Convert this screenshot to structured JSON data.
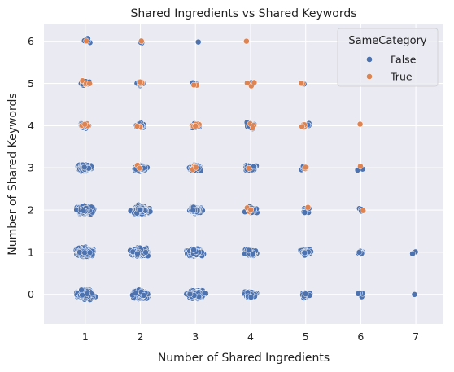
{
  "chart_data": {
    "type": "scatter",
    "title": "Shared Ingredients vs Shared Keywords",
    "xlabel": "Number of Shared Ingredients",
    "ylabel": "Number of Shared Keywords",
    "xlim": [
      0.25,
      7.5
    ],
    "ylim": [
      -0.7,
      6.4
    ],
    "xticks": [
      1,
      2,
      3,
      4,
      5,
      6,
      7
    ],
    "yticks": [
      0,
      1,
      2,
      3,
      4,
      5,
      6
    ],
    "grid": true,
    "jitter": true,
    "background": "#EAEAF2",
    "legend": {
      "title": "SameCategory",
      "position": "upper right",
      "entries": [
        {
          "label": "False",
          "color": "#4C72B0"
        },
        {
          "label": "True",
          "color": "#DD8452"
        }
      ]
    },
    "series": [
      {
        "name": "False",
        "color": "#4C72B0",
        "groups": [
          {
            "x": 1,
            "y": 0,
            "count": 900
          },
          {
            "x": 1,
            "y": 1,
            "count": 700
          },
          {
            "x": 1,
            "y": 2,
            "count": 450
          },
          {
            "x": 1,
            "y": 3,
            "count": 160
          },
          {
            "x": 1,
            "y": 4,
            "count": 30
          },
          {
            "x": 1,
            "y": 5,
            "count": 14
          },
          {
            "x": 1,
            "y": 6,
            "count": 4
          },
          {
            "x": 2,
            "y": 0,
            "count": 500
          },
          {
            "x": 2,
            "y": 1,
            "count": 400
          },
          {
            "x": 2,
            "y": 2,
            "count": 280
          },
          {
            "x": 2,
            "y": 3,
            "count": 120
          },
          {
            "x": 2,
            "y": 4,
            "count": 32
          },
          {
            "x": 2,
            "y": 5,
            "count": 8
          },
          {
            "x": 2,
            "y": 6,
            "count": 2
          },
          {
            "x": 3,
            "y": 0,
            "count": 300
          },
          {
            "x": 3,
            "y": 1,
            "count": 170
          },
          {
            "x": 3,
            "y": 2,
            "count": 140
          },
          {
            "x": 3,
            "y": 3,
            "count": 70
          },
          {
            "x": 3,
            "y": 4,
            "count": 22
          },
          {
            "x": 3,
            "y": 5,
            "count": 3
          },
          {
            "x": 3,
            "y": 6,
            "count": 1
          },
          {
            "x": 4,
            "y": 0,
            "count": 130
          },
          {
            "x": 4,
            "y": 1,
            "count": 80
          },
          {
            "x": 4,
            "y": 2,
            "count": 50
          },
          {
            "x": 4,
            "y": 3,
            "count": 35
          },
          {
            "x": 4,
            "y": 4,
            "count": 14
          },
          {
            "x": 4,
            "y": 5,
            "count": 2
          },
          {
            "x": 5,
            "y": 0,
            "count": 28
          },
          {
            "x": 5,
            "y": 1,
            "count": 25
          },
          {
            "x": 5,
            "y": 2,
            "count": 10
          },
          {
            "x": 5,
            "y": 3,
            "count": 6
          },
          {
            "x": 5,
            "y": 4,
            "count": 3
          },
          {
            "x": 5,
            "y": 5,
            "count": 1
          },
          {
            "x": 6,
            "y": 0,
            "count": 4
          },
          {
            "x": 6,
            "y": 1,
            "count": 10
          },
          {
            "x": 6,
            "y": 2,
            "count": 5
          },
          {
            "x": 6,
            "y": 3,
            "count": 2
          },
          {
            "x": 7,
            "y": 0,
            "count": 1
          },
          {
            "x": 7,
            "y": 1,
            "count": 2
          }
        ]
      },
      {
        "name": "True",
        "color": "#DD8452",
        "groups": [
          {
            "x": 1,
            "y": 4,
            "count": 4
          },
          {
            "x": 1,
            "y": 5,
            "count": 4
          },
          {
            "x": 1,
            "y": 6,
            "count": 1
          },
          {
            "x": 2,
            "y": 3,
            "count": 3
          },
          {
            "x": 2,
            "y": 4,
            "count": 3
          },
          {
            "x": 2,
            "y": 5,
            "count": 5
          },
          {
            "x": 2,
            "y": 6,
            "count": 1
          },
          {
            "x": 3,
            "y": 3,
            "count": 5
          },
          {
            "x": 3,
            "y": 4,
            "count": 7
          },
          {
            "x": 3,
            "y": 5,
            "count": 2
          },
          {
            "x": 4,
            "y": 2,
            "count": 5
          },
          {
            "x": 4,
            "y": 3,
            "count": 1
          },
          {
            "x": 4,
            "y": 4,
            "count": 3
          },
          {
            "x": 4,
            "y": 5,
            "count": 3
          },
          {
            "x": 4,
            "y": 6,
            "count": 1
          },
          {
            "x": 5,
            "y": 2,
            "count": 1
          },
          {
            "x": 5,
            "y": 3,
            "count": 3
          },
          {
            "x": 5,
            "y": 4,
            "count": 4
          },
          {
            "x": 5,
            "y": 5,
            "count": 2
          },
          {
            "x": 6,
            "y": 2,
            "count": 1
          },
          {
            "x": 6,
            "y": 3,
            "count": 1
          },
          {
            "x": 6,
            "y": 4,
            "count": 1
          }
        ]
      }
    ]
  }
}
